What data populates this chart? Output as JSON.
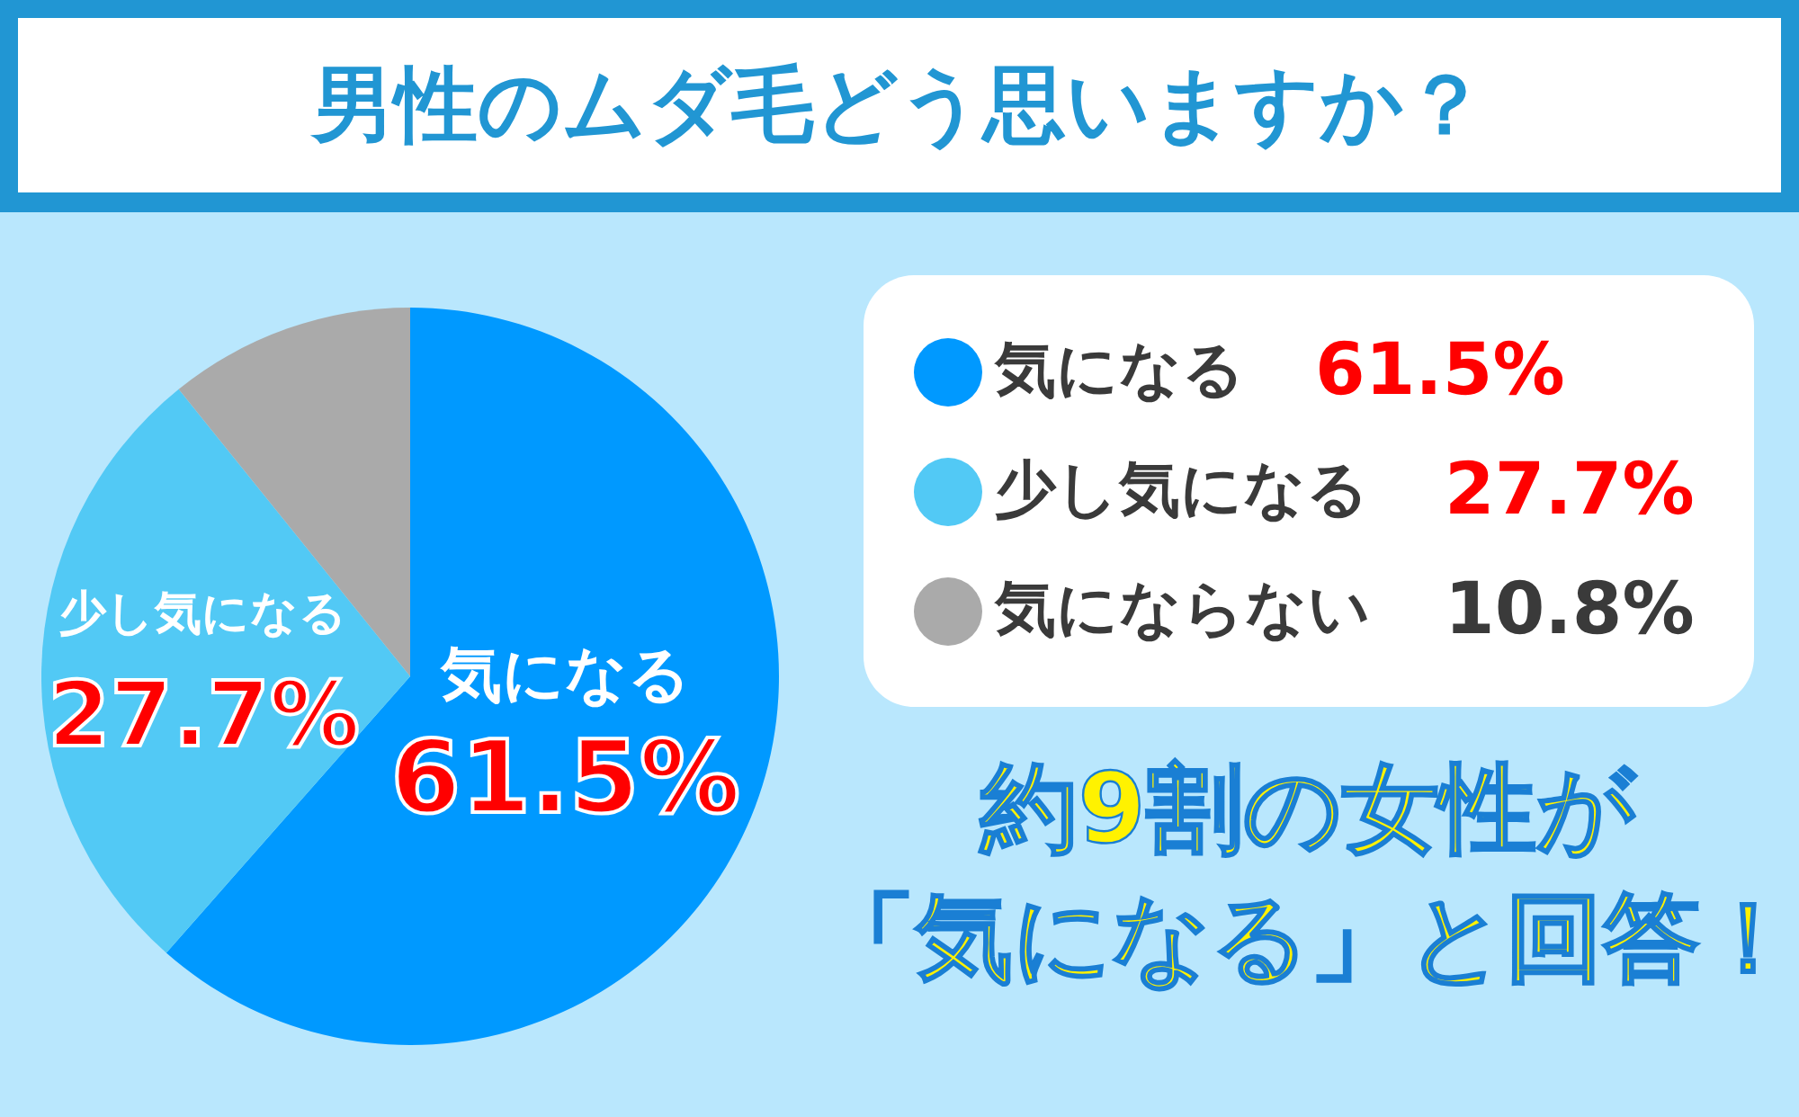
{
  "chart_data": {
    "type": "pie",
    "title": "男性のムダ毛どう思いますか？",
    "categories": [
      "気になる",
      "少し気になる",
      "気にならない"
    ],
    "values": [
      61.5,
      27.7,
      10.8
    ],
    "colors": [
      "#0099ff",
      "#52c9f5",
      "#aaaaaa"
    ],
    "value_labels": [
      "61.5%",
      "27.7%",
      "10.8%"
    ],
    "legend": "right",
    "annotations": [
      "約9割の女性が",
      "「気になる」と回答！"
    ]
  }
}
